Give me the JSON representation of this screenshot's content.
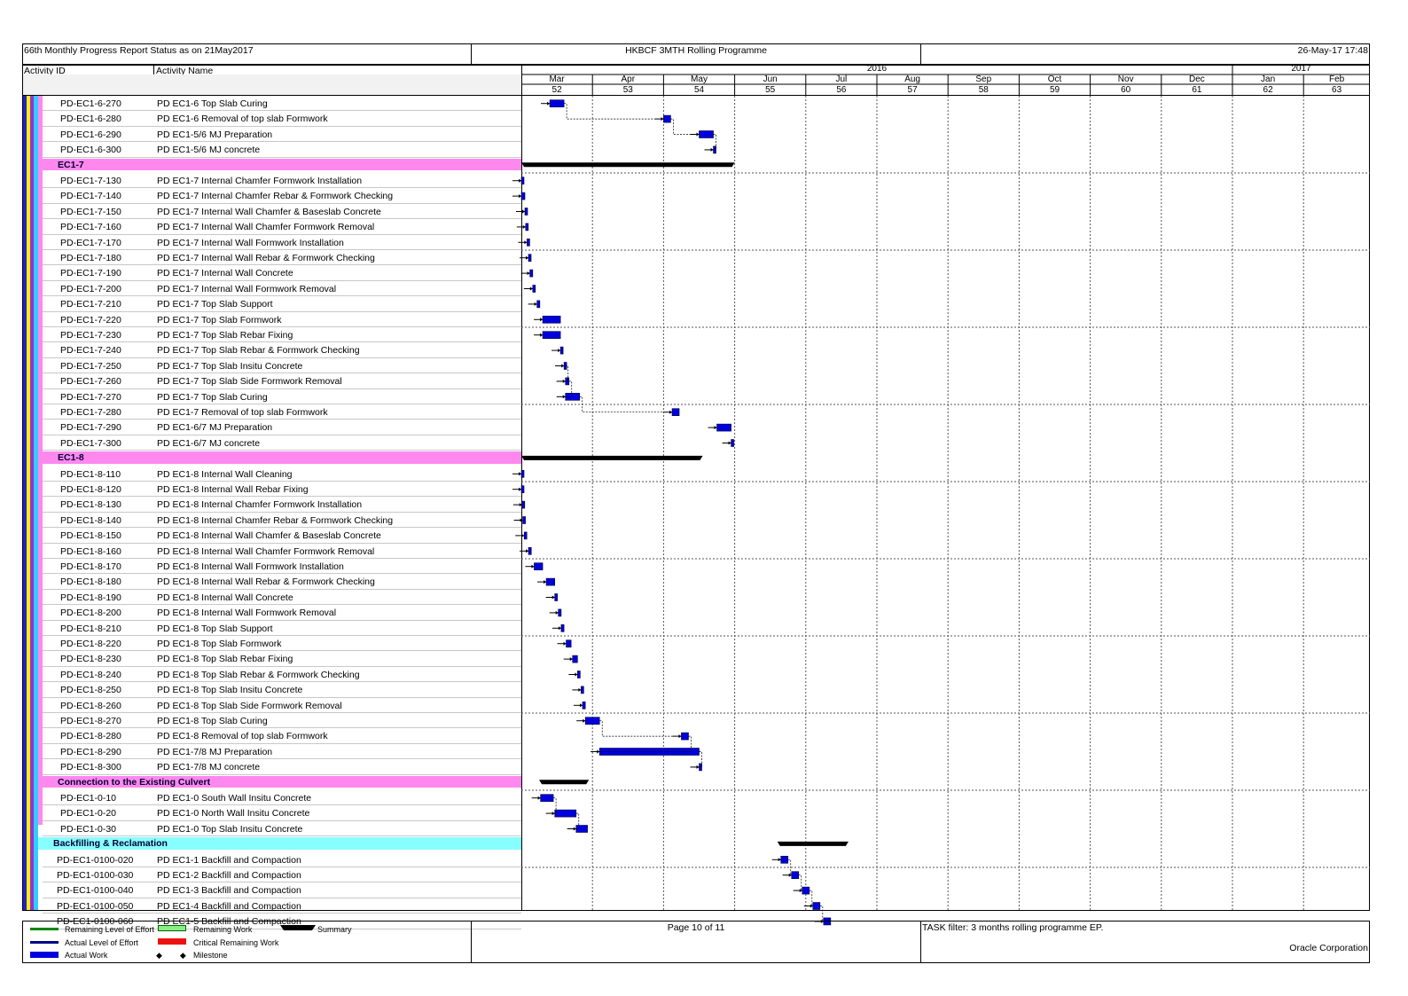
{
  "header": {
    "left_title": "66th Monthly Progress Report Status as on 21May2017",
    "center_title": "HKBCF 3MTH Rolling Programme",
    "right_date": "26-May-17 17:48"
  },
  "columns": {
    "activity_id": "Activity ID",
    "activity_name": "Activity Name"
  },
  "timescale": {
    "years": [
      {
        "label": "2016",
        "from": 0,
        "to": 10
      },
      {
        "label": "2017",
        "from": 10,
        "to": 12
      }
    ],
    "months": [
      "Mar",
      "Apr",
      "May",
      "Jun",
      "Jul",
      "Aug",
      "Sep",
      "Oct",
      "Nov",
      "Dec",
      "Jan",
      "Feb"
    ],
    "weeks": [
      "52",
      "53",
      "54",
      "55",
      "56",
      "57",
      "58",
      "59",
      "60",
      "61",
      "62",
      "63"
    ]
  },
  "rows": [
    {
      "type": "activity",
      "id": "PD-EC1-6-270",
      "name": "PD EC1-6 Top Slab Curing",
      "start": 0.4,
      "end": 0.6
    },
    {
      "type": "activity",
      "id": "PD-EC1-6-280",
      "name": "PD EC1-6 Removal of top slab Formwork",
      "start": 2.0,
      "end": 2.1
    },
    {
      "type": "activity",
      "id": "PD-EC1-6-290",
      "name": "PD EC1-5/6 MJ Preparation",
      "start": 2.5,
      "end": 2.7
    },
    {
      "type": "activity",
      "id": "PD-EC1-6-300",
      "name": "PD EC1-5/6 MJ concrete",
      "start": 2.7,
      "end": 2.72
    },
    {
      "type": "group",
      "label": "EC1-7",
      "color": "#ff88ee",
      "start": 0.0,
      "end": 3.0
    },
    {
      "type": "activity",
      "id": "PD-EC1-7-130",
      "name": "PD EC1-7 Internal Chamfer Formwork Installation",
      "start": 0.0,
      "end": 0.0
    },
    {
      "type": "activity",
      "id": "PD-EC1-7-140",
      "name": "PD EC1-7 Internal Chamfer Rebar & Formwork Checking",
      "start": 0.0,
      "end": 0.05
    },
    {
      "type": "activity",
      "id": "PD-EC1-7-150",
      "name": "PD EC1-7 Internal Wall Chamfer & Baseslab Concrete",
      "start": 0.05,
      "end": 0.06
    },
    {
      "type": "activity",
      "id": "PD-EC1-7-160",
      "name": "PD EC1-7 Internal Wall Chamfer Formwork Removal",
      "start": 0.06,
      "end": 0.08
    },
    {
      "type": "activity",
      "id": "PD-EC1-7-170",
      "name": "PD EC1-7 Internal Wall Formwork Installation",
      "start": 0.08,
      "end": 0.1
    },
    {
      "type": "activity",
      "id": "PD-EC1-7-180",
      "name": "PD EC1-7 Internal Wall Rebar & Formwork Checking",
      "start": 0.1,
      "end": 0.12
    },
    {
      "type": "activity",
      "id": "PD-EC1-7-190",
      "name": "PD EC1-7 Internal Wall Concrete",
      "start": 0.12,
      "end": 0.16
    },
    {
      "type": "activity",
      "id": "PD-EC1-7-200",
      "name": "PD EC1-7 Internal Wall Formwork Removal",
      "start": 0.16,
      "end": 0.18
    },
    {
      "type": "activity",
      "id": "PD-EC1-7-210",
      "name": "PD EC1-7 Top Slab Support",
      "start": 0.22,
      "end": 0.26
    },
    {
      "type": "activity",
      "id": "PD-EC1-7-220",
      "name": "PD EC1-7 Top Slab Formwork",
      "start": 0.3,
      "end": 0.55
    },
    {
      "type": "activity",
      "id": "PD-EC1-7-230",
      "name": "PD EC1-7 Top Slab Rebar Fixing",
      "start": 0.3,
      "end": 0.55
    },
    {
      "type": "activity",
      "id": "PD-EC1-7-240",
      "name": "PD EC1-7 Top Slab Rebar & Formwork Checking",
      "start": 0.55,
      "end": 0.56
    },
    {
      "type": "activity",
      "id": "PD-EC1-7-250",
      "name": "PD EC1-7 Top Slab Insitu Concrete",
      "start": 0.6,
      "end": 0.62
    },
    {
      "type": "activity",
      "id": "PD-EC1-7-260",
      "name": "PD EC1-7 Top Slab Side Formwork Removal",
      "start": 0.62,
      "end": 0.67
    },
    {
      "type": "activity",
      "id": "PD-EC1-7-270",
      "name": "PD EC1-7 Top Slab Curing",
      "start": 0.62,
      "end": 0.82
    },
    {
      "type": "activity",
      "id": "PD-EC1-7-280",
      "name": "PD EC1-7 Removal of top slab Formwork",
      "start": 2.12,
      "end": 2.22
    },
    {
      "type": "activity",
      "id": "PD-EC1-7-290",
      "name": "PD EC1-6/7 MJ Preparation",
      "start": 2.75,
      "end": 2.95
    },
    {
      "type": "activity",
      "id": "PD-EC1-7-300",
      "name": "PD EC1-6/7 MJ concrete",
      "start": 2.95,
      "end": 2.97
    },
    {
      "type": "group",
      "label": "EC1-8",
      "color": "#ff88ee",
      "start": 0.0,
      "end": 2.55
    },
    {
      "type": "activity",
      "id": "PD-EC1-8-110",
      "name": "PD EC1-8 Internal Wall Cleaning",
      "start": 0.0,
      "end": 0.0
    },
    {
      "type": "activity",
      "id": "PD-EC1-8-120",
      "name": "PD EC1-8 Internal Wall Rebar Fixing",
      "start": 0.0,
      "end": 0.01
    },
    {
      "type": "activity",
      "id": "PD-EC1-8-130",
      "name": "PD EC1-8 Internal Chamfer Formwork Installation",
      "start": 0.01,
      "end": 0.02
    },
    {
      "type": "activity",
      "id": "PD-EC1-8-140",
      "name": "PD EC1-8 Internal Chamfer Rebar & Formwork Checking",
      "start": 0.02,
      "end": 0.04
    },
    {
      "type": "activity",
      "id": "PD-EC1-8-150",
      "name": "PD EC1-8 Internal Wall Chamfer & Baseslab Concrete",
      "start": 0.04,
      "end": 0.06
    },
    {
      "type": "activity",
      "id": "PD-EC1-8-160",
      "name": "PD EC1-8 Internal Wall Chamfer Formwork Removal",
      "start": 0.1,
      "end": 0.14
    },
    {
      "type": "activity",
      "id": "PD-EC1-8-170",
      "name": "PD EC1-8 Internal Wall Formwork Installation",
      "start": 0.18,
      "end": 0.3
    },
    {
      "type": "activity",
      "id": "PD-EC1-8-180",
      "name": "PD EC1-8 Internal Wall Rebar & Formwork Checking",
      "start": 0.35,
      "end": 0.47
    },
    {
      "type": "activity",
      "id": "PD-EC1-8-190",
      "name": "PD EC1-8 Internal Wall Concrete",
      "start": 0.47,
      "end": 0.5
    },
    {
      "type": "activity",
      "id": "PD-EC1-8-200",
      "name": "PD EC1-8 Internal Wall Formwork Removal",
      "start": 0.52,
      "end": 0.56
    },
    {
      "type": "activity",
      "id": "PD-EC1-8-210",
      "name": "PD EC1-8 Top Slab Support",
      "start": 0.56,
      "end": 0.6
    },
    {
      "type": "activity",
      "id": "PD-EC1-8-220",
      "name": "PD EC1-8 Top Slab Formwork",
      "start": 0.63,
      "end": 0.7
    },
    {
      "type": "activity",
      "id": "PD-EC1-8-230",
      "name": "PD EC1-8 Top Slab Rebar Fixing",
      "start": 0.72,
      "end": 0.79
    },
    {
      "type": "activity",
      "id": "PD-EC1-8-240",
      "name": "PD EC1-8 Top Slab Rebar & Formwork Checking",
      "start": 0.79,
      "end": 0.8
    },
    {
      "type": "activity",
      "id": "PD-EC1-8-250",
      "name": "PD EC1-8 Top Slab Insitu Concrete",
      "start": 0.84,
      "end": 0.86
    },
    {
      "type": "activity",
      "id": "PD-EC1-8-260",
      "name": "PD EC1-8 Top Slab Side Formwork Removal",
      "start": 0.86,
      "end": 0.9
    },
    {
      "type": "activity",
      "id": "PD-EC1-8-270",
      "name": "PD EC1-8 Top Slab Curing",
      "start": 0.9,
      "end": 1.1
    },
    {
      "type": "activity",
      "id": "PD-EC1-8-280",
      "name": "PD EC1-8 Removal of top slab Formwork",
      "start": 2.25,
      "end": 2.35
    },
    {
      "type": "activity",
      "id": "PD-EC1-8-290",
      "name": "PD EC1-7/8 MJ Preparation",
      "start": 1.1,
      "end": 2.5
    },
    {
      "type": "activity",
      "id": "PD-EC1-8-300",
      "name": "PD EC1-7/8 MJ concrete",
      "start": 2.5,
      "end": 2.52
    },
    {
      "type": "group",
      "label": "Connection to the Existing Culvert",
      "color": "#ff88ee",
      "start": 0.25,
      "end": 0.95
    },
    {
      "type": "activity",
      "id": "PD-EC1-0-10",
      "name": "PD EC1-0 South Wall Insitu Concrete",
      "start": 0.27,
      "end": 0.45
    },
    {
      "type": "activity",
      "id": "PD-EC1-0-20",
      "name": "PD EC1-0 North Wall Insitu Concrete",
      "start": 0.47,
      "end": 0.77
    },
    {
      "type": "activity",
      "id": "PD-EC1-0-30",
      "name": "PD EC1-0 Top Slab Insitu Concrete",
      "start": 0.77,
      "end": 0.93
    },
    {
      "type": "group",
      "label": "Backfilling & Reclamation",
      "color": "#88ffff",
      "start": 3.6,
      "end": 4.6
    },
    {
      "type": "activity",
      "id": "PD-EC1-0100-020",
      "name": "PD EC1-1 Backfill and Compaction",
      "start": 3.65,
      "end": 3.75
    },
    {
      "type": "activity",
      "id": "PD-EC1-0100-030",
      "name": "PD EC1-2 Backfill and Compaction",
      "start": 3.8,
      "end": 3.9
    },
    {
      "type": "activity",
      "id": "PD-EC1-0100-040",
      "name": "PD EC1-3 Backfill and Compaction",
      "start": 3.95,
      "end": 4.05
    },
    {
      "type": "activity",
      "id": "PD-EC1-0100-050",
      "name": "PD EC1-4 Backfill and Compaction",
      "start": 4.1,
      "end": 4.2
    },
    {
      "type": "activity",
      "id": "PD-EC1-0100-060",
      "name": "PD EC1-5 Backfill and Compaction",
      "start": 4.25,
      "end": 4.35
    }
  ],
  "legend": {
    "remaining_loe": "Remaining Level of Effort",
    "actual_loe": "Actual Level of Effort",
    "actual_work": "Actual Work",
    "remaining_work": "Remaining Work",
    "critical_remaining": "Critical Remaining Work",
    "milestone": "Milestone",
    "summary": "Summary"
  },
  "footer": {
    "page": "Page 10 of 11",
    "filter": "TASK filter: 3 months rolling programme EP.",
    "company": "Oracle Corporation"
  },
  "colors": {
    "bar": "#0000dd",
    "summary": "#000000",
    "group_pink": "#ff88ee",
    "group_cyan": "#88ffff"
  }
}
